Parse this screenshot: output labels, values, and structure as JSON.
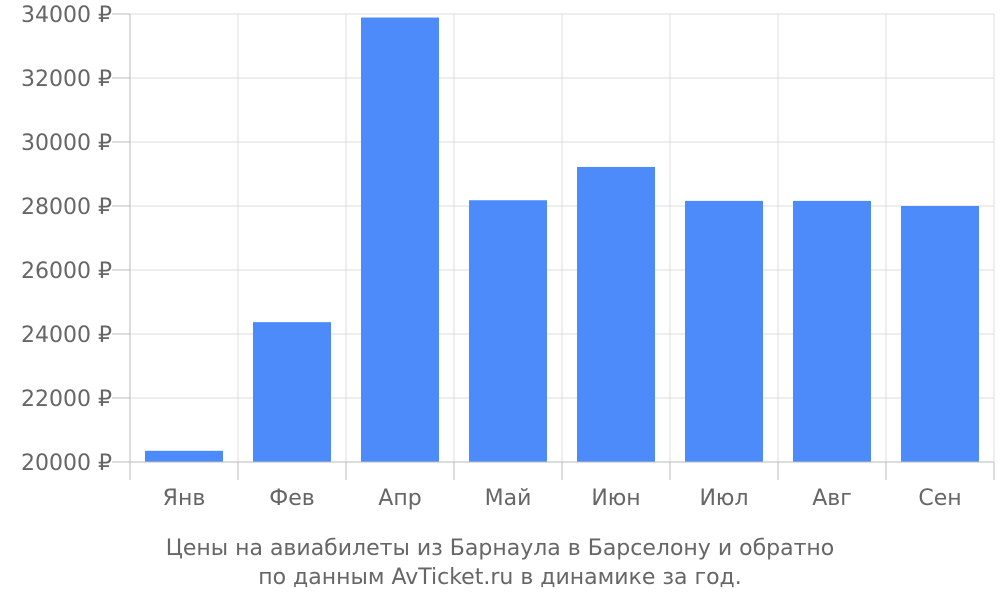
{
  "chart_data": {
    "type": "bar",
    "categories": [
      "Янв",
      "Фев",
      "Апр",
      "Май",
      "Июн",
      "Июл",
      "Авг",
      "Сен"
    ],
    "values": [
      20350,
      24370,
      33890,
      28180,
      29220,
      28160,
      28160,
      28000
    ],
    "ylim": [
      20000,
      34000
    ],
    "yticks": [
      20000,
      22000,
      24000,
      26000,
      28000,
      30000,
      32000,
      34000
    ],
    "ytick_labels": [
      "20000 ₽",
      "22000 ₽",
      "24000 ₽",
      "26000 ₽",
      "28000 ₽",
      "30000 ₽",
      "32000 ₽",
      "34000 ₽"
    ],
    "grid": true,
    "bar_color": "#4d8afa",
    "caption": [
      "Цены на авиабилеты из Барнаула в Барселону и обратно",
      "по данным AvTicket.ru в динамике за год."
    ]
  }
}
